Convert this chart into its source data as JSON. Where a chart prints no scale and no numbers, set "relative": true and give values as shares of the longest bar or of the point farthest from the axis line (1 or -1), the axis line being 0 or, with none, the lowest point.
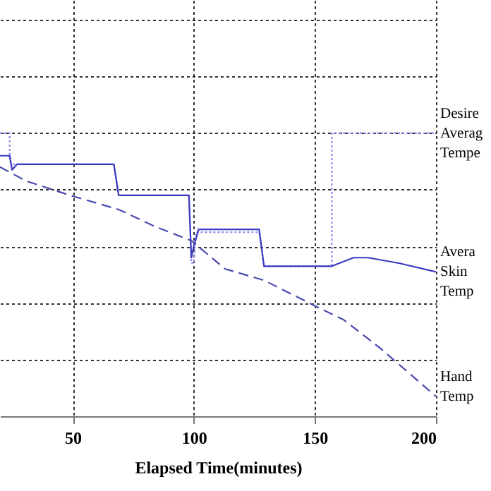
{
  "chart_data": {
    "type": "line",
    "relative": true,
    "xlabel": "Elapsed Time(minutes)",
    "xlim": [
      20,
      200
    ],
    "xticks": [
      50,
      100,
      150,
      200
    ],
    "grid": true,
    "legend": false,
    "series": [
      {
        "name": "Desire Averag Tempe",
        "color": "#8c8cf0",
        "line_style": "dotted",
        "x": [
          20,
          24,
          24,
          25,
          67,
          69,
          98,
          99,
          100,
          101,
          127,
          129,
          157,
          157,
          200
        ],
        "values": [
          1.0,
          1.0,
          0.9,
          0.89,
          0.89,
          0.78,
          0.78,
          0.54,
          0.54,
          0.65,
          0.65,
          0.53,
          0.53,
          1.0,
          1.0
        ]
      },
      {
        "name": "Avera Skin Temp",
        "color": "#3a3ac0",
        "line_style": "solid",
        "x": [
          20,
          24,
          25,
          27,
          67,
          69,
          98,
          99,
          100,
          101,
          102,
          127,
          129,
          157,
          166,
          172,
          185,
          200
        ],
        "values": [
          0.92,
          0.92,
          0.87,
          0.89,
          0.89,
          0.78,
          0.78,
          0.56,
          0.6,
          0.63,
          0.66,
          0.66,
          0.53,
          0.53,
          0.56,
          0.56,
          0.54,
          0.51
        ]
      },
      {
        "name": "Hand Temp",
        "color": "#4a4ab0",
        "line_style": "dashed",
        "x": [
          20,
          31,
          49,
          69,
          84,
          99,
          113,
          129,
          150,
          162,
          177,
          200
        ],
        "values": [
          0.88,
          0.83,
          0.78,
          0.73,
          0.67,
          0.62,
          0.52,
          0.48,
          0.39,
          0.34,
          0.24,
          0.07
        ]
      }
    ]
  }
}
